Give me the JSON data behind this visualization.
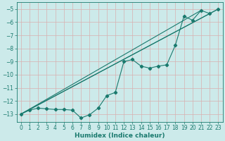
{
  "title": "",
  "xlabel": "Humidex (Indice chaleur)",
  "ylabel": "",
  "bg_color": "#cceaea",
  "grid_color": "#b0d0d0",
  "line_color": "#1a7a6e",
  "xlim": [
    -0.5,
    23.5
  ],
  "ylim": [
    -13.6,
    -4.5
  ],
  "yticks": [
    -13,
    -12,
    -11,
    -10,
    -9,
    -8,
    -7,
    -6,
    -5
  ],
  "xticks": [
    0,
    1,
    2,
    3,
    4,
    5,
    6,
    7,
    8,
    9,
    10,
    11,
    12,
    13,
    14,
    15,
    16,
    17,
    18,
    19,
    20,
    21,
    22,
    23
  ],
  "series": [
    [
      0,
      -13.0
    ],
    [
      1,
      -12.7
    ],
    [
      2,
      -12.55
    ],
    [
      3,
      -12.6
    ],
    [
      4,
      -12.65
    ],
    [
      5,
      -12.65
    ],
    [
      6,
      -12.7
    ],
    [
      7,
      -13.3
    ],
    [
      8,
      -13.05
    ],
    [
      9,
      -12.55
    ],
    [
      10,
      -11.6
    ],
    [
      11,
      -11.35
    ],
    [
      12,
      -9.0
    ],
    [
      13,
      -8.85
    ],
    [
      14,
      -9.35
    ],
    [
      15,
      -9.5
    ],
    [
      16,
      -9.35
    ],
    [
      17,
      -9.25
    ],
    [
      18,
      -7.75
    ],
    [
      19,
      -5.55
    ],
    [
      20,
      -5.85
    ],
    [
      21,
      -5.1
    ],
    [
      22,
      -5.35
    ],
    [
      23,
      -5.0
    ]
  ],
  "line2": [
    [
      0,
      -13.0
    ],
    [
      23,
      -5.0
    ]
  ],
  "line3": [
    [
      0,
      -13.0
    ],
    [
      21,
      -5.1
    ]
  ],
  "line4": [
    [
      0,
      -13.0
    ],
    [
      22,
      -5.35
    ]
  ]
}
